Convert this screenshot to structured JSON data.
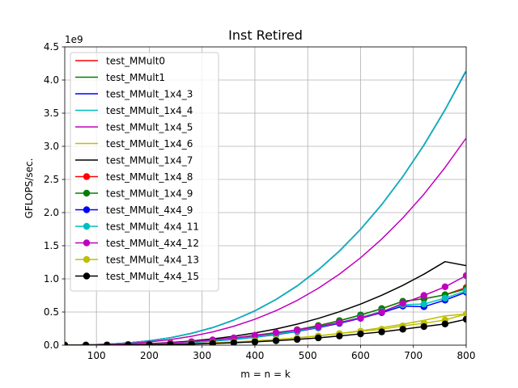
{
  "chart_data": {
    "type": "line",
    "title": "Inst Retired",
    "xlabel": "m = n = k",
    "ylabel": "GFLOPS/sec.",
    "offset_label": "1e9",
    "y_scale": 1000000000,
    "xlim": [
      40,
      800
    ],
    "ylim": [
      0,
      4.5
    ],
    "x_ticks": [
      100,
      200,
      300,
      400,
      500,
      600,
      700,
      800
    ],
    "y_ticks": [
      0.0,
      0.5,
      1.0,
      1.5,
      2.0,
      2.5,
      3.0,
      3.5,
      4.0,
      4.5
    ],
    "x_tick_labels": [
      "100",
      "200",
      "300",
      "400",
      "500",
      "600",
      "700",
      "800"
    ],
    "y_tick_labels": [
      "0.0",
      "0.5",
      "1.0",
      "1.5",
      "2.0",
      "2.5",
      "3.0",
      "3.5",
      "4.0",
      "4.5"
    ],
    "grid": true,
    "legend_position": "upper-left",
    "x": [
      40,
      80,
      120,
      160,
      200,
      240,
      280,
      320,
      360,
      400,
      440,
      480,
      520,
      560,
      600,
      640,
      680,
      720,
      760,
      800
    ],
    "series": [
      {
        "name": "test_MMult0",
        "color": "#ff0000",
        "marker": false,
        "values": [
          0.0005,
          0.004,
          0.014,
          0.033,
          0.065,
          0.112,
          0.178,
          0.265,
          0.378,
          0.518,
          0.689,
          0.894,
          1.137,
          1.42,
          1.747,
          2.12,
          2.543,
          3.019,
          3.551,
          4.142
        ]
      },
      {
        "name": "test_MMult1",
        "color": "#008000",
        "marker": false,
        "values": [
          0.0005,
          0.004,
          0.014,
          0.033,
          0.065,
          0.112,
          0.178,
          0.265,
          0.378,
          0.518,
          0.689,
          0.894,
          1.137,
          1.42,
          1.747,
          2.12,
          2.543,
          3.019,
          3.551,
          4.142
        ]
      },
      {
        "name": "test_MMult_1x4_3",
        "color": "#0000ff",
        "marker": false,
        "values": [
          0.0005,
          0.004,
          0.014,
          0.033,
          0.065,
          0.112,
          0.178,
          0.265,
          0.378,
          0.518,
          0.689,
          0.894,
          1.137,
          1.42,
          1.747,
          2.12,
          2.543,
          3.019,
          3.551,
          4.142
        ]
      },
      {
        "name": "test_MMult_1x4_4",
        "color": "#00bfbf",
        "marker": false,
        "values": [
          0.0005,
          0.004,
          0.014,
          0.033,
          0.065,
          0.112,
          0.178,
          0.265,
          0.378,
          0.518,
          0.689,
          0.894,
          1.137,
          1.42,
          1.747,
          2.12,
          2.543,
          3.019,
          3.551,
          4.15
        ]
      },
      {
        "name": "test_MMult_1x4_5",
        "color": "#bf00bf",
        "marker": false,
        "values": [
          0.0004,
          0.003,
          0.01,
          0.025,
          0.049,
          0.084,
          0.134,
          0.2,
          0.285,
          0.391,
          0.52,
          0.675,
          0.858,
          1.072,
          1.318,
          1.6,
          1.919,
          2.278,
          2.68,
          3.125
        ]
      },
      {
        "name": "test_MMult_1x4_6",
        "color": "#bfbf00",
        "marker": false,
        "values": [
          0.0001,
          0.0005,
          0.0017,
          0.004,
          0.008,
          0.014,
          0.022,
          0.033,
          0.047,
          0.064,
          0.086,
          0.111,
          0.141,
          0.176,
          0.217,
          0.264,
          0.316,
          0.375,
          0.442,
          0.47
        ]
      },
      {
        "name": "test_MMult_1x4_7",
        "color": "#000000",
        "marker": false,
        "values": [
          0.0002,
          0.0015,
          0.005,
          0.012,
          0.023,
          0.04,
          0.063,
          0.094,
          0.134,
          0.184,
          0.244,
          0.317,
          0.403,
          0.504,
          0.62,
          0.752,
          0.902,
          1.071,
          1.26,
          1.2
        ]
      },
      {
        "name": "test_MMult_1x4_8",
        "color": "#ff0000",
        "marker": true,
        "values": [
          0.0001,
          0.001,
          0.004,
          0.009,
          0.017,
          0.029,
          0.046,
          0.069,
          0.098,
          0.135,
          0.179,
          0.232,
          0.295,
          0.369,
          0.454,
          0.551,
          0.661,
          0.7,
          0.76,
          0.87
        ]
      },
      {
        "name": "test_MMult_1x4_9",
        "color": "#008000",
        "marker": true,
        "values": [
          0.0001,
          0.001,
          0.004,
          0.009,
          0.017,
          0.029,
          0.046,
          0.069,
          0.098,
          0.135,
          0.179,
          0.232,
          0.295,
          0.369,
          0.454,
          0.551,
          0.661,
          0.7,
          0.76,
          0.85
        ]
      },
      {
        "name": "test_MMult_4x4_9",
        "color": "#0000ff",
        "marker": true,
        "values": [
          0.0001,
          0.001,
          0.003,
          0.008,
          0.015,
          0.026,
          0.041,
          0.061,
          0.087,
          0.12,
          0.159,
          0.207,
          0.263,
          0.329,
          0.405,
          0.491,
          0.589,
          0.58,
          0.68,
          0.8
        ]
      },
      {
        "name": "test_MMult_4x4_11",
        "color": "#00bfbf",
        "marker": true,
        "values": [
          0.0001,
          0.001,
          0.003,
          0.008,
          0.016,
          0.027,
          0.043,
          0.064,
          0.091,
          0.124,
          0.165,
          0.214,
          0.272,
          0.34,
          0.419,
          0.508,
          0.61,
          0.62,
          0.71,
          0.82
        ]
      },
      {
        "name": "test_MMult_4x4_12",
        "color": "#bf00bf",
        "marker": true,
        "values": [
          0.0001,
          0.001,
          0.004,
          0.01,
          0.019,
          0.033,
          0.053,
          0.08,
          0.11,
          0.15,
          0.19,
          0.23,
          0.28,
          0.34,
          0.41,
          0.5,
          0.63,
          0.75,
          0.88,
          1.05
        ]
      },
      {
        "name": "test_MMult_4x4_13",
        "color": "#bfbf00",
        "marker": true,
        "values": [
          5e-05,
          0.0005,
          0.0015,
          0.004,
          0.008,
          0.014,
          0.022,
          0.033,
          0.047,
          0.064,
          0.085,
          0.11,
          0.14,
          0.175,
          0.21,
          0.24,
          0.29,
          0.33,
          0.38,
          0.47
        ]
      },
      {
        "name": "test_MMult_4x4_15",
        "color": "#000000",
        "marker": true,
        "values": [
          4e-05,
          0.0004,
          0.0012,
          0.003,
          0.006,
          0.011,
          0.017,
          0.026,
          0.037,
          0.05,
          0.067,
          0.087,
          0.11,
          0.138,
          0.17,
          0.2,
          0.24,
          0.28,
          0.32,
          0.39
        ]
      }
    ]
  }
}
